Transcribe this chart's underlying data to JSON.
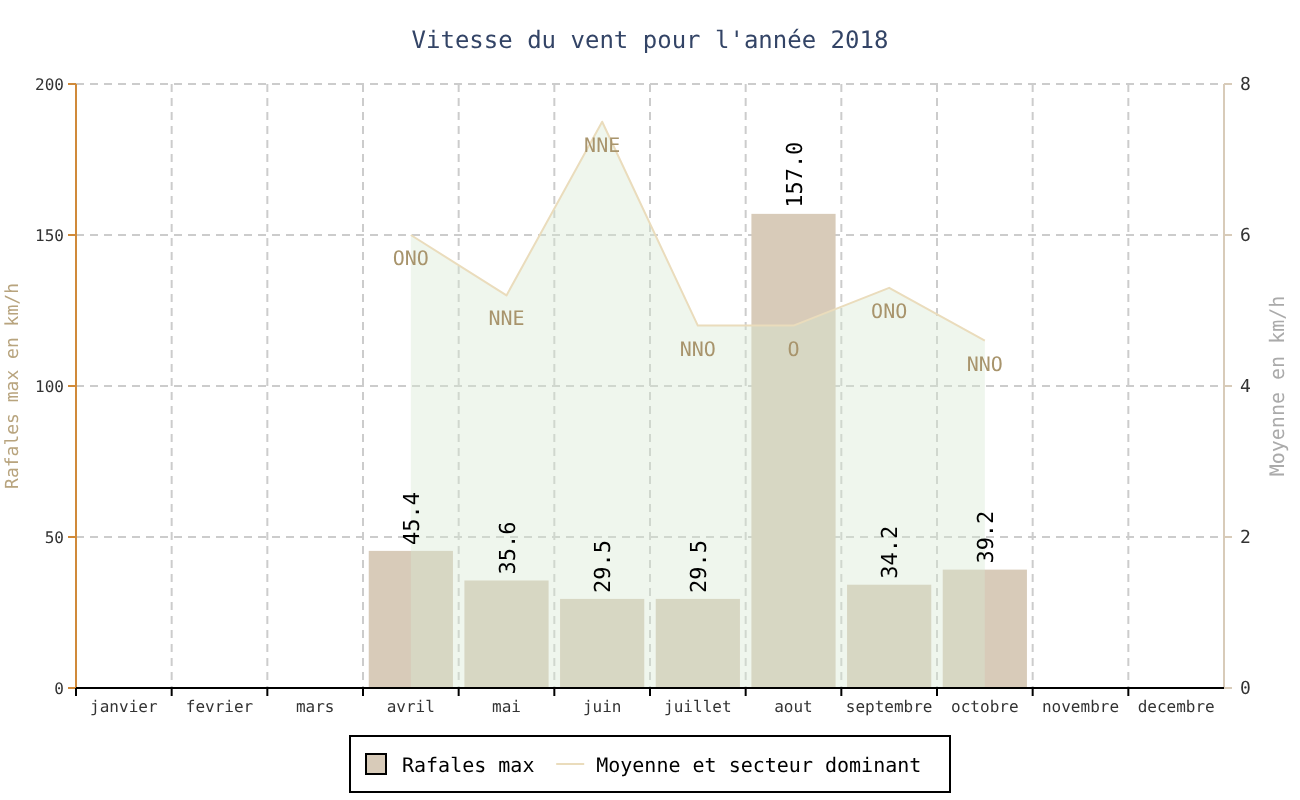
{
  "chart_data": {
    "type": "bar",
    "title": "Vitesse du vent pour l'année 2018",
    "ylabel": "Rafales max en km/h",
    "y2label": "Moyenne en km/h",
    "categories": [
      "janvier",
      "fevrier",
      "mars",
      "avril",
      "mai",
      "juin",
      "juillet",
      "aout",
      "septembre",
      "octobre",
      "novembre",
      "decembre"
    ],
    "series": [
      {
        "name": "Rafales max",
        "color": "#d8cbb9",
        "values": [
          null,
          null,
          null,
          45.4,
          35.6,
          29.5,
          29.5,
          157.0,
          34.2,
          39.2,
          null,
          null
        ],
        "value_labels": [
          null,
          null,
          null,
          "45.4",
          "35.6",
          "29.5",
          "29.5",
          "157.0",
          "34.2",
          "39.2",
          null,
          null
        ]
      },
      {
        "name": "Moyenne et secteur dominant",
        "type": "area",
        "axis": "y2",
        "color": "#eadcbc",
        "values": [
          null,
          null,
          null,
          6.0,
          5.2,
          7.5,
          4.8,
          4.8,
          5.3,
          4.6,
          null,
          null
        ],
        "value_labels": [
          null,
          null,
          null,
          "ONO",
          "NNE",
          "NNE",
          "NNO",
          "O",
          "ONO",
          "NNO",
          null,
          null
        ]
      }
    ],
    "ylim": [
      0,
      200
    ],
    "yticks": [
      0,
      50,
      100,
      150,
      200
    ],
    "y2lim": [
      0,
      8
    ],
    "y2ticks": [
      0,
      2,
      4,
      6,
      8
    ],
    "grid": true,
    "legend": "bottom"
  }
}
